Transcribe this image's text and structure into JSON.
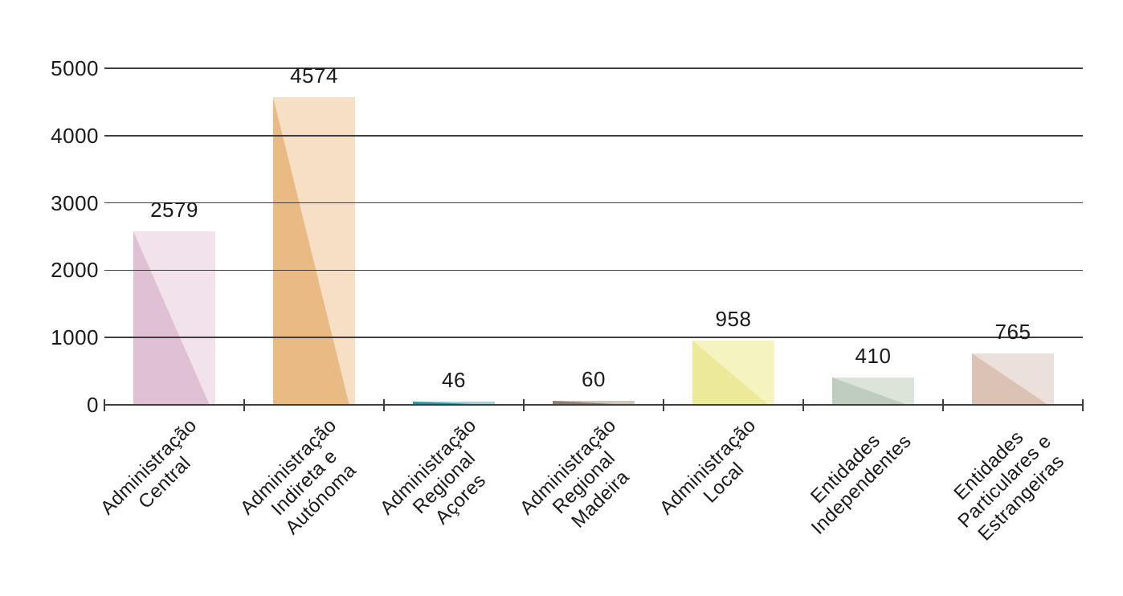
{
  "chart_data": {
    "type": "bar",
    "title": "",
    "xlabel": "",
    "ylabel": "",
    "categories": [
      "Administração Central",
      "Administração Indireta e Autónoma",
      "Administração Regional Açores",
      "Administração Regional Madeira",
      "Administração Local",
      "Entidades Independentes",
      "Entidades Particulares e Estrangeiras"
    ],
    "category_lines": [
      [
        "Administração",
        "Central"
      ],
      [
        "Administração",
        "Indireta e",
        "Autónoma"
      ],
      [
        "Administração",
        "Regional",
        "Açores"
      ],
      [
        "Administração",
        "Regional",
        "Madeira"
      ],
      [
        "Administração",
        "Local"
      ],
      [
        "Entidades",
        "Independentes"
      ],
      [
        "Entidades",
        "Particulares e",
        "Estrangeiras"
      ]
    ],
    "category_slugs": [
      "administracao-central",
      "administracao-indireta-e-autonoma",
      "administracao-regional-acores",
      "administracao-regional-madeira",
      "administracao-local",
      "entidades-independentes",
      "entidades-particulares-e-estrangeiras"
    ],
    "values": [
      2579,
      4574,
      46,
      60,
      958,
      410,
      765
    ],
    "value_labels": [
      "2579",
      "4574",
      "46",
      "60",
      "958",
      "410",
      "765"
    ],
    "ylim": [
      0,
      5000
    ],
    "yticks": [
      0,
      1000,
      2000,
      3000,
      4000,
      5000
    ],
    "ytick_labels": [
      "0",
      "1000",
      "2000",
      "3000",
      "4000",
      "5000"
    ],
    "grid": true,
    "legend": false,
    "gridlines_over_bars": true,
    "diagonal_split_percent": 93,
    "bar_colors": [
      {
        "dark": "#DFC1D3",
        "light": "#F1E2EB"
      },
      {
        "dark": "#E9BA84",
        "light": "#F6DFC4"
      },
      {
        "dark": "#2F93A8",
        "light": "#A7CEDB"
      },
      {
        "dark": "#8C8072",
        "light": "#CDC6BC"
      },
      {
        "dark": "#ECE999",
        "light": "#F5F3C0"
      },
      {
        "dark": "#BECDBE",
        "light": "#DCE4D9"
      },
      {
        "dark": "#DCC2B5",
        "light": "#ECE1DA"
      }
    ],
    "axis_color": "#3E3E3E",
    "text_color": "#1A1A1A"
  }
}
